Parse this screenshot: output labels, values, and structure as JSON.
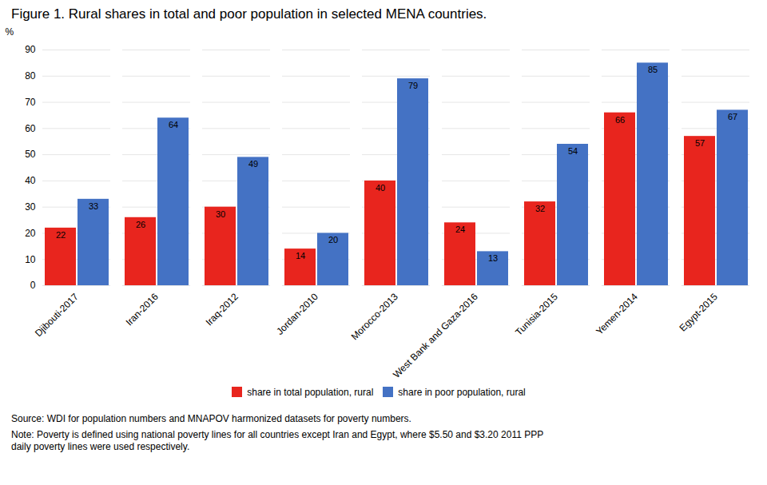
{
  "chart_data": {
    "type": "bar",
    "title": "Figure 1. Rural shares in total and poor population in selected MENA countries.",
    "categories": [
      "Djibouti-2017",
      "Iran-2016",
      "Iraq-2012",
      "Jordan-2010",
      "Morocco-2013",
      "West Bank and Gaza-2016",
      "Tunisia-2015",
      "Yemen-2014",
      "Egypt-2015"
    ],
    "series": [
      {
        "name": "share in total population, rural",
        "color": "#e8251e",
        "values": [
          22,
          26,
          30,
          14,
          40,
          24,
          32,
          66,
          57
        ]
      },
      {
        "name": "share in poor population, rural",
        "color": "#4472c4",
        "values": [
          33,
          64,
          49,
          20,
          79,
          13,
          54,
          85,
          67
        ]
      }
    ],
    "ylabel": "%",
    "ylim": [
      0,
      90
    ],
    "yticks": [
      0,
      10,
      20,
      30,
      40,
      50,
      60,
      70,
      80,
      90
    ],
    "grid": true,
    "data_labels": true,
    "legend": "bottom",
    "annotations": [
      "Source: WDI for population numbers and MNAPOV harmonized datasets for poverty numbers.",
      "Note: Poverty is defined using national poverty lines for all countries except Iran and Egypt, where $5.50 and $3.20 2011 PPP\ndaily poverty lines were used respectively."
    ]
  }
}
